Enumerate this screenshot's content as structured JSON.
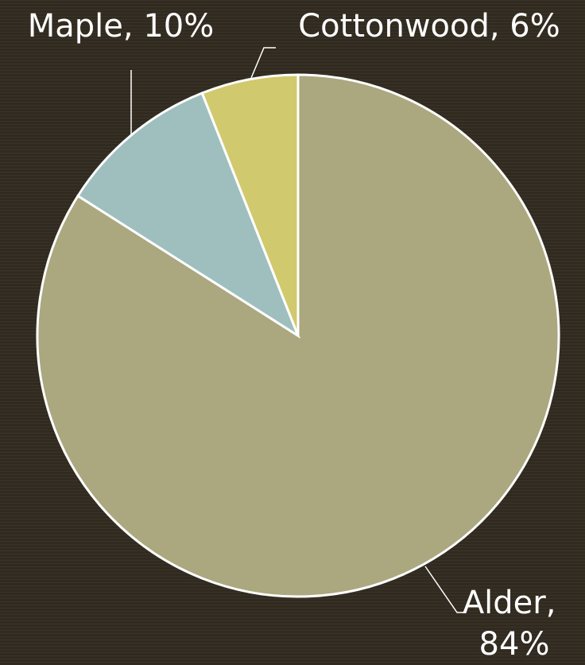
{
  "chart_data": {
    "type": "pie",
    "categories": [
      "Alder",
      "Maple",
      "Cottonwood"
    ],
    "values": [
      84,
      10,
      6
    ],
    "value_labels": [
      "Alder, 84%",
      "Maple, 10%",
      "Cottonwood, 6%"
    ],
    "colors": [
      "#aba77f",
      "#9fbfbf",
      "#d1c96e"
    ]
  }
}
